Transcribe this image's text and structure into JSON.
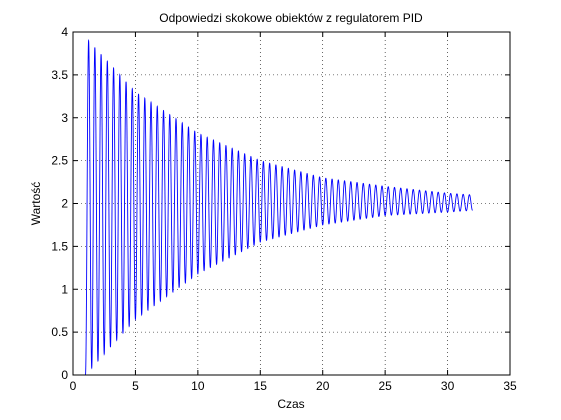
{
  "chart_data": {
    "type": "line",
    "title": "Odpowiedzi skokowe obiektów z regulatorem PID",
    "xlabel": "Czas",
    "ylabel": "Wartość",
    "xlim": [
      0,
      35
    ],
    "ylim": [
      0,
      4
    ],
    "xticks": [
      "0",
      "5",
      "10",
      "15",
      "20",
      "25",
      "30",
      "35"
    ],
    "yticks": [
      "0",
      "0.5",
      "1",
      "1.5",
      "2",
      "2.5",
      "3",
      "3.5",
      "4"
    ],
    "grid": true,
    "line_color": "#0000ff",
    "series": [
      {
        "t_start": 1.0,
        "t_end": 32.0,
        "oscillation_period": 0.5,
        "envelope_upper": [
          [
            1.0,
            3.94
          ],
          [
            5.0,
            3.3
          ],
          [
            10.0,
            2.82
          ],
          [
            15.0,
            2.5
          ],
          [
            20.0,
            2.3
          ],
          [
            25.0,
            2.2
          ],
          [
            30.0,
            2.12
          ],
          [
            32.0,
            2.1
          ]
        ],
        "envelope_lower": [
          [
            1.0,
            0.0
          ],
          [
            5.0,
            0.65
          ],
          [
            10.0,
            1.18
          ],
          [
            15.0,
            1.55
          ],
          [
            20.0,
            1.75
          ],
          [
            25.0,
            1.86
          ],
          [
            30.0,
            1.9
          ],
          [
            32.0,
            1.92
          ]
        ]
      }
    ]
  }
}
